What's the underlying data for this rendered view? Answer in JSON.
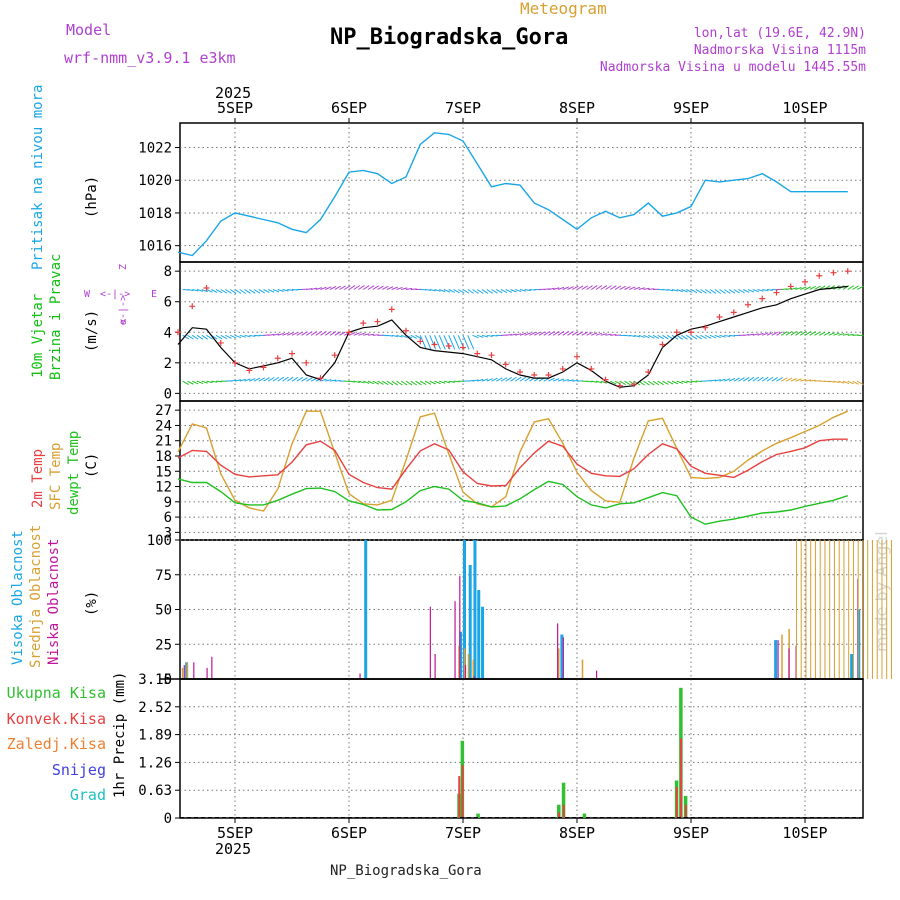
{
  "header": {
    "model_label": "Model",
    "model_value": "wrf-nmm_v3.9.1 e3km",
    "product": "Meteogram",
    "station": "NP_Biogradska_Gora",
    "location": "lon,lat (19.6E, 42.9N)",
    "elevation": "Nadmorska Visina 1115m",
    "model_elevation": "Nadmorska Visina u modelu 1445.55m",
    "credit": "made by Angel",
    "footer_station": "NP_Biogradska_Gora"
  },
  "time_axis": {
    "year": "2025",
    "days": [
      "5SEP",
      "6SEP",
      "7SEP",
      "8SEP",
      "9SEP",
      "10SEP"
    ]
  },
  "colors": {
    "pressure": "#1aa6e6",
    "wind": "#10c010",
    "temp2m": "#e84040",
    "sfc": "#d8a030",
    "dew": "#20c020",
    "high_cloud": "#1aa6e6",
    "mid_cloud": "#d8a030",
    "low_cloud": "#c0169a",
    "total_precip": "#30c030",
    "conv_precip": "#e84040",
    "freezing": "#f08030",
    "snow": "#4040e0",
    "hail": "#20c0c0",
    "purple": "#b040d0"
  },
  "chart_data": [
    {
      "type": "line",
      "title": "Pritisak na nivou mora",
      "ylabel": "(hPa)",
      "yticks": [
        "1016",
        "1018",
        "1020",
        "1022"
      ],
      "ylim": [
        1015,
        1023.5
      ],
      "x_hours": [
        0,
        3,
        6,
        9,
        12,
        15,
        18,
        21,
        24,
        27,
        30,
        33,
        36,
        39,
        42,
        45,
        48,
        51,
        54,
        57,
        60,
        63,
        66,
        69,
        72,
        75,
        78,
        81,
        84,
        87,
        90,
        93,
        96,
        99,
        102,
        105,
        108,
        111,
        114,
        117,
        120,
        123,
        126,
        129,
        132,
        135,
        138,
        141
      ],
      "series": [
        {
          "name": "Pressure",
          "values": [
            1015.6,
            1015.4,
            1016.3,
            1017.5,
            1018.0,
            1017.8,
            1017.6,
            1017.4,
            1017.0,
            1016.8,
            1017.6,
            1019.0,
            1020.5,
            1020.6,
            1020.4,
            1019.8,
            1020.2,
            1022.2,
            1022.9,
            1022.8,
            1022.4,
            1021.0,
            1019.6,
            1019.8,
            1019.7,
            1018.6,
            1018.2,
            1017.6,
            1017.0,
            1017.7,
            1018.1,
            1017.7,
            1017.9,
            1018.6,
            1017.8,
            1018.0,
            1018.4,
            1020.0,
            1019.9,
            1020.0,
            1020.1,
            1020.4,
            1019.9,
            1019.3,
            1019.3,
            1019.3,
            1019.3,
            1019.3
          ]
        }
      ]
    },
    {
      "type": "line",
      "title": "10m Vjetar Brzina i Pravac",
      "ylabel": "(m/s)",
      "yticks": [
        "0",
        "2",
        "4",
        "6",
        "8"
      ],
      "ylim": [
        -0.5,
        8.6
      ],
      "legend": [
        "N",
        "E",
        "W",
        "Z",
        "<-|->"
      ],
      "series": [
        {
          "name": "Wind speed",
          "values": [
            3.2,
            4.3,
            4.2,
            3.0,
            2.0,
            1.6,
            1.8,
            2.0,
            2.3,
            1.2,
            0.9,
            2.0,
            4.0,
            4.3,
            4.4,
            4.8,
            3.8,
            3.0,
            2.8,
            2.7,
            2.6,
            2.4,
            2.2,
            1.6,
            1.2,
            1.0,
            1.0,
            1.4,
            2.0,
            1.5,
            0.8,
            0.4,
            0.5,
            1.2,
            3.0,
            3.8,
            4.2,
            4.4,
            4.7,
            5.0,
            5.3,
            5.6,
            5.8,
            6.2,
            6.5,
            6.8,
            6.9,
            7.0
          ]
        },
        {
          "name": "Gust",
          "values": [
            4.0,
            5.7,
            6.9,
            3.3,
            2.0,
            1.5,
            1.7,
            2.3,
            2.6,
            2.0,
            1.0,
            2.5,
            4.0,
            4.6,
            4.7,
            5.5,
            4.1,
            3.4,
            3.2,
            3.1,
            3.0,
            2.6,
            2.5,
            1.9,
            1.4,
            1.2,
            1.2,
            1.6,
            2.4,
            1.6,
            0.9,
            0.5,
            0.6,
            1.4,
            3.2,
            4.0,
            4.0,
            4.3,
            5.0,
            5.3,
            5.8,
            6.2,
            6.6,
            7.0,
            7.3,
            7.7,
            7.9,
            8.0
          ]
        }
      ]
    },
    {
      "type": "line",
      "title": "2m Temp / SFC Temp / dewpt Temp",
      "ylabel": "(C)",
      "yticks": [
        "3",
        "6",
        "9",
        "12",
        "15",
        "18",
        "21",
        "24",
        "27"
      ],
      "ylim": [
        1.5,
        28.8
      ],
      "series": [
        {
          "name": "2m Temp",
          "values": [
            17.6,
            19.1,
            18.9,
            16.2,
            14.4,
            13.9,
            14.1,
            14.3,
            16.8,
            20.2,
            20.9,
            19.1,
            14.4,
            12.8,
            11.8,
            11.5,
            15.4,
            19.0,
            20.4,
            19.2,
            14.9,
            12.6,
            12.1,
            12.2,
            15.7,
            18.6,
            20.9,
            19.9,
            16.4,
            14.6,
            14.1,
            14.0,
            15.5,
            18.3,
            20.4,
            19.4,
            16.0,
            14.6,
            14.2,
            13.8,
            15.2,
            16.9,
            18.3,
            18.9,
            19.6,
            21.0,
            21.3,
            21.3
          ]
        },
        {
          "name": "SFC Temp",
          "values": [
            18.8,
            24.3,
            23.5,
            14.5,
            9.3,
            7.8,
            7.2,
            11.5,
            20.4,
            26.8,
            26.8,
            18.6,
            10.6,
            8.6,
            8.4,
            9.3,
            17.2,
            25.7,
            26.4,
            18.4,
            10.9,
            8.6,
            8.0,
            10.0,
            18.8,
            24.7,
            25.3,
            20.5,
            14.8,
            11.2,
            9.2,
            8.9,
            17.6,
            24.9,
            25.4,
            19.5,
            13.8,
            13.6,
            13.8,
            15.0,
            17.2,
            19.0,
            20.5,
            21.6,
            22.8,
            24.0,
            25.6,
            26.8
          ]
        },
        {
          "name": "Dewpt Temp",
          "values": [
            13.5,
            12.8,
            12.8,
            11.0,
            8.8,
            8.4,
            8.4,
            9.3,
            10.5,
            11.6,
            11.7,
            11.0,
            9.2,
            8.5,
            7.4,
            7.5,
            9.0,
            11.2,
            12.0,
            11.5,
            9.3,
            8.8,
            8.0,
            8.2,
            9.6,
            11.4,
            13.0,
            12.4,
            10.0,
            8.4,
            7.8,
            8.6,
            8.8,
            9.8,
            10.8,
            10.2,
            6.0,
            4.6,
            5.2,
            5.6,
            6.2,
            6.8,
            7.0,
            7.4,
            8.1,
            8.7,
            9.3,
            10.2
          ]
        }
      ]
    },
    {
      "type": "bar",
      "title": "Visoka Oblacnost / Srednja Oblacnost / Niska Oblacnost",
      "ylabel": "(%)",
      "yticks": [
        "0",
        "25",
        "50",
        "75",
        "100"
      ],
      "ylim": [
        0,
        100
      ],
      "series": [
        {
          "name": "Visoka Oblacnost",
          "points": [
            [
              1.5,
              12
            ],
            [
              39.2,
              100
            ],
            [
              59.2,
              34
            ],
            [
              60.0,
              100
            ],
            [
              61.2,
              82
            ],
            [
              62.2,
              100
            ],
            [
              63.0,
              64
            ],
            [
              63.8,
              52
            ],
            [
              80.5,
              32
            ],
            [
              125.5,
              28
            ],
            [
              141.5,
              18
            ],
            [
              143.0,
              50
            ]
          ]
        },
        {
          "name": "Srednja Oblacnost",
          "points": [
            [
              0.8,
              8
            ],
            [
              1.8,
              12
            ],
            [
              59.0,
              24
            ],
            [
              60.2,
              22
            ],
            [
              61.0,
              18
            ],
            [
              62.0,
              14
            ],
            [
              80.0,
              22
            ],
            [
              85.0,
              14
            ],
            [
              127.0,
              32
            ],
            [
              128.5,
              36
            ]
          ]
        },
        {
          "name": "Niska Oblacnost",
          "points": [
            [
              1.2,
              10
            ],
            [
              3.2,
              12
            ],
            [
              6.0,
              8
            ],
            [
              7.0,
              16
            ],
            [
              38.2,
              4
            ],
            [
              53.0,
              52
            ],
            [
              54.0,
              18
            ],
            [
              58.2,
              56
            ],
            [
              59.2,
              74
            ],
            [
              60.4,
              10
            ],
            [
              62.2,
              2
            ],
            [
              79.8,
              40
            ],
            [
              81.0,
              30
            ],
            [
              88.0,
              6
            ],
            [
              126.2,
              28
            ],
            [
              128.5,
              22
            ],
            [
              130.0,
              24
            ],
            [
              143.0,
              72
            ]
          ]
        },
        {
          "name": "Srednja Oblacnost (continuous)",
          "x_range": [
            130.2,
            150.4
          ],
          "value": 100
        }
      ]
    },
    {
      "type": "bar",
      "title": "1hr Precip",
      "ylabel": "1hr Precip (mm)",
      "yticks": [
        "0",
        "0.63",
        "1.26",
        "1.89",
        "2.52",
        "3.15"
      ],
      "ylim": [
        0,
        3.15
      ],
      "legend": [
        "Ukupna Kisa",
        "Konvek.Kisa",
        "Zaledj.Kisa",
        "Snijeg",
        "Grad"
      ],
      "series": [
        {
          "name": "Ukupna Kisa",
          "points": [
            [
              58.8,
              0.55
            ],
            [
              59.5,
              1.75
            ],
            [
              62.8,
              0.1
            ],
            [
              79.8,
              0.3
            ],
            [
              80.8,
              0.8
            ],
            [
              85.2,
              0.1
            ],
            [
              104.6,
              0.85
            ],
            [
              105.5,
              2.95
            ],
            [
              106.5,
              0.5
            ]
          ]
        },
        {
          "name": "Konvek.Kisa",
          "points": [
            [
              59.0,
              0.95
            ],
            [
              59.7,
              1.2
            ],
            [
              80.0,
              0.12
            ],
            [
              81.0,
              0.3
            ],
            [
              104.8,
              0.7
            ],
            [
              105.7,
              1.8
            ],
            [
              106.7,
              0.3
            ]
          ]
        }
      ]
    }
  ],
  "wind_barbs": {
    "direction_indicator": {
      "north": "N",
      "east": "E",
      "west": "W",
      "south": "Z"
    }
  }
}
